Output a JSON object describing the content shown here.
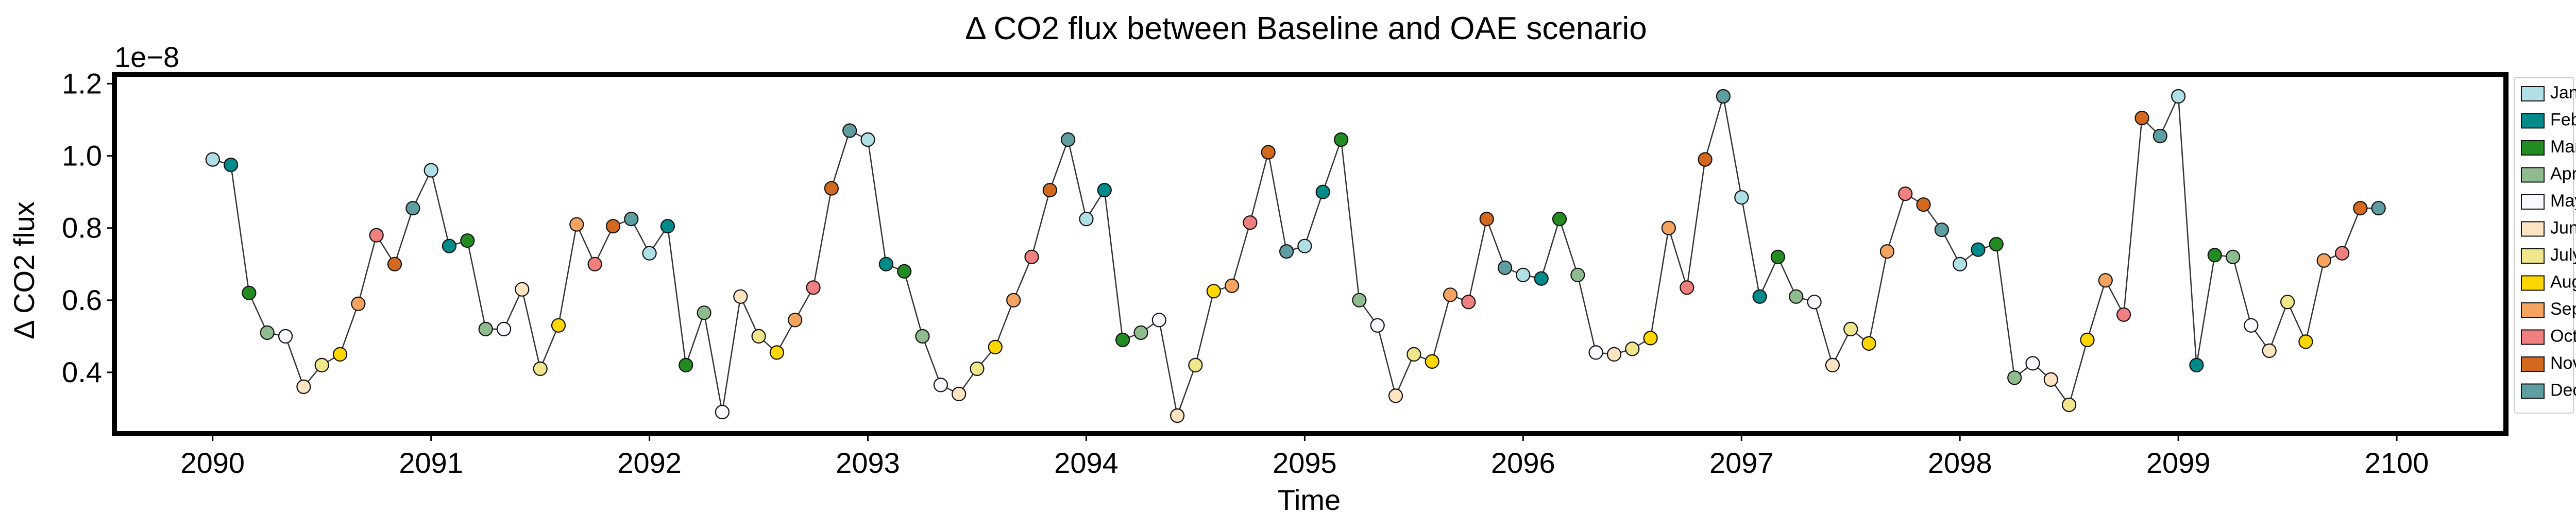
{
  "chart_data": {
    "type": "scatter",
    "title": "Δ CO2 flux between Baseline and OAE scenario",
    "xlabel": "Time",
    "ylabel": "Δ CO2 flux",
    "y_offset_label": "1e−8",
    "y_scale_exponent": -8,
    "xlim": [
      2089.55,
      2100.5
    ],
    "ylim": [
      0.23,
      1.225
    ],
    "x_ticks": [
      2090,
      2091,
      2092,
      2093,
      2094,
      2095,
      2096,
      2097,
      2098,
      2099,
      2100
    ],
    "x_tick_labels": [
      "2090",
      "2091",
      "2092",
      "2093",
      "2094",
      "2095",
      "2096",
      "2097",
      "2098",
      "2099",
      "2100"
    ],
    "y_ticks": [
      0.4,
      0.6,
      0.8,
      1.0,
      1.2
    ],
    "y_tick_labels": [
      "0.4",
      "0.6",
      "0.8",
      "1.0",
      "1.2"
    ],
    "grid": false,
    "legend_position": "right-outside",
    "line_color": "#333333",
    "months": [
      {
        "label": "Jan",
        "color": "#b0e0e6"
      },
      {
        "label": "Feb",
        "color": "#008b8b"
      },
      {
        "label": "Mar",
        "color": "#228b22"
      },
      {
        "label": "Apr",
        "color": "#8fbc8f"
      },
      {
        "label": "May",
        "color": "#f8f8ff"
      },
      {
        "label": "June",
        "color": "#ffe4c4"
      },
      {
        "label": "July",
        "color": "#f0e68c"
      },
      {
        "label": "Aug",
        "color": "#ffd700"
      },
      {
        "label": "Sept",
        "color": "#f4a460"
      },
      {
        "label": "Oct",
        "color": "#f08080"
      },
      {
        "label": "Nov",
        "color": "#d2691e"
      },
      {
        "label": "Dec",
        "color": "#5f9ea0"
      }
    ],
    "series": [
      {
        "year": 2090,
        "values": [
          0.99,
          0.975,
          0.62,
          0.51,
          0.5,
          0.36,
          0.42,
          0.45,
          0.59,
          0.78,
          0.7,
          0.855
        ]
      },
      {
        "year": 2091,
        "values": [
          0.96,
          0.75,
          0.765,
          0.52,
          0.52,
          0.63,
          0.41,
          0.53,
          0.81,
          0.7,
          0.805,
          0.825
        ]
      },
      {
        "year": 2092,
        "values": [
          0.73,
          0.805,
          0.42,
          0.565,
          0.29,
          0.61,
          0.5,
          0.455,
          0.545,
          0.635,
          0.91,
          1.07
        ]
      },
      {
        "year": 2093,
        "values": [
          1.045,
          0.7,
          0.68,
          0.5,
          0.365,
          0.34,
          0.41,
          0.47,
          0.6,
          0.72,
          0.905,
          1.045
        ]
      },
      {
        "year": 2094,
        "values": [
          0.825,
          0.905,
          0.49,
          0.51,
          0.545,
          0.28,
          0.42,
          0.625,
          0.64,
          0.815,
          1.01,
          0.735
        ]
      },
      {
        "year": 2095,
        "values": [
          0.75,
          0.9,
          1.045,
          0.6,
          0.53,
          0.335,
          0.45,
          0.43,
          0.615,
          0.595,
          0.825,
          0.69
        ]
      },
      {
        "year": 2096,
        "values": [
          0.67,
          0.66,
          0.825,
          0.67,
          0.455,
          0.45,
          0.465,
          0.495,
          0.8,
          0.635,
          0.99,
          1.165
        ]
      },
      {
        "year": 2097,
        "values": [
          0.885,
          0.61,
          0.72,
          0.61,
          0.595,
          0.42,
          0.52,
          0.48,
          0.735,
          0.895,
          0.865,
          0.795
        ]
      },
      {
        "year": 2098,
        "values": [
          0.7,
          0.74,
          0.755,
          0.385,
          0.425,
          0.38,
          0.31,
          0.49,
          0.655,
          0.56,
          1.105,
          1.055
        ]
      },
      {
        "year": 2099,
        "values": [
          1.165,
          0.42,
          0.725,
          0.72,
          0.53,
          0.46,
          0.595,
          0.485,
          0.71,
          0.73,
          0.855,
          0.855
        ]
      }
    ]
  }
}
